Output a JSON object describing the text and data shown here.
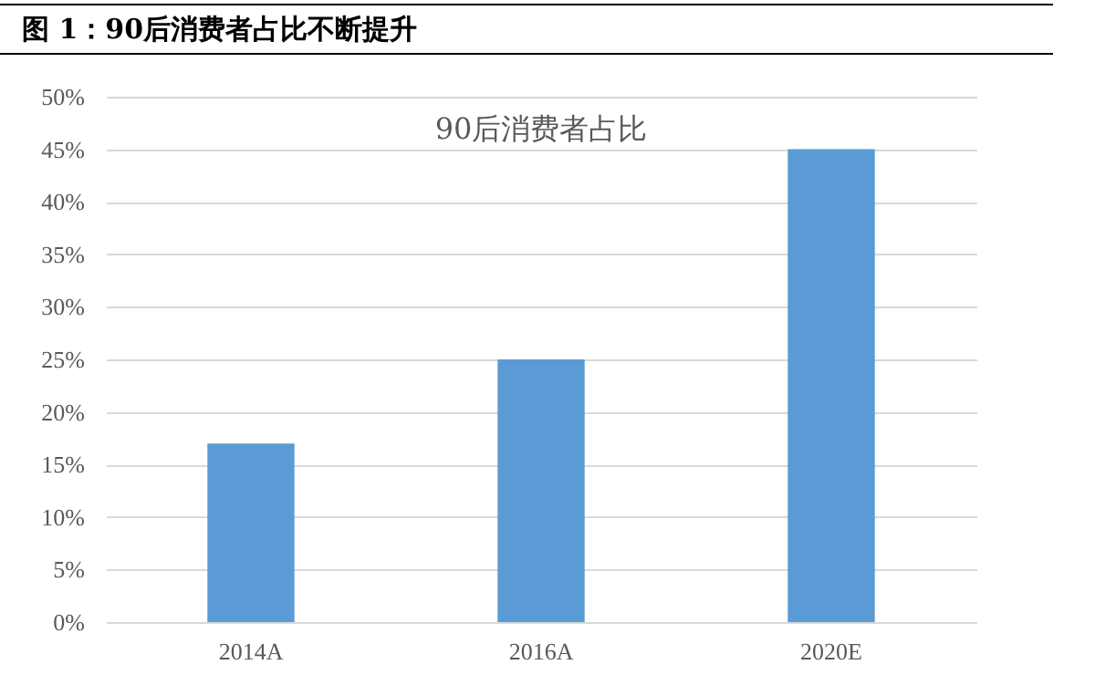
{
  "chart_data": {
    "type": "bar",
    "title": "图 1：90后消费者占比不断提升",
    "subtitle": "90后消费者占比",
    "categories": [
      "2014A",
      "2016A",
      "2020E"
    ],
    "values": [
      17,
      25,
      45
    ],
    "color": "#5b9bd5",
    "ylim": [
      0,
      50
    ],
    "yticks": [
      {
        "value": 0,
        "label": "0%"
      },
      {
        "value": 5,
        "label": "5%"
      },
      {
        "value": 10,
        "label": "10%"
      },
      {
        "value": 15,
        "label": "15%"
      },
      {
        "value": 20,
        "label": "20%"
      },
      {
        "value": 25,
        "label": "25%"
      },
      {
        "value": 30,
        "label": "30%"
      },
      {
        "value": 35,
        "label": "35%"
      },
      {
        "value": 40,
        "label": "40%"
      },
      {
        "value": 45,
        "label": "45%"
      },
      {
        "value": 50,
        "label": "50%"
      }
    ],
    "grid": "y"
  }
}
